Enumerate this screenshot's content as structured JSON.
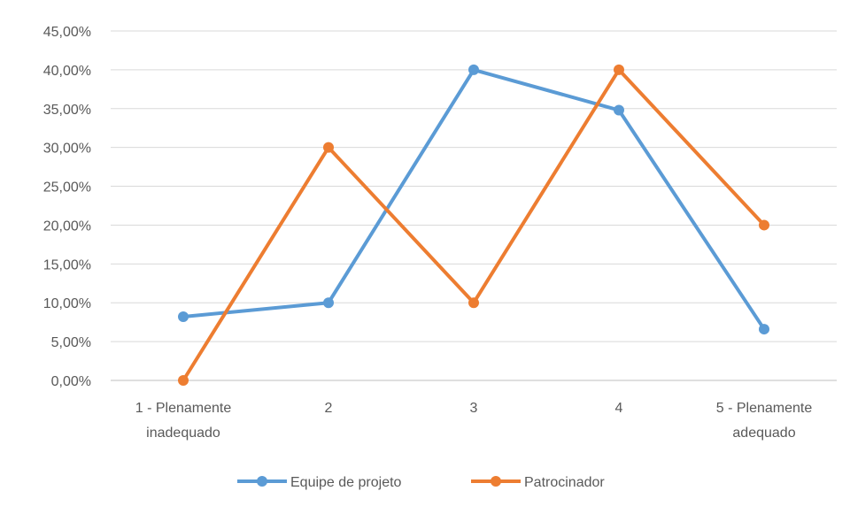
{
  "chart_data": {
    "type": "line",
    "categories": [
      "1 - Plenamente inadequado",
      "2",
      "3",
      "4",
      "5 - Plenamente adequado"
    ],
    "category_lines": [
      [
        "1 - Plenamente",
        "inadequado"
      ],
      [
        "2"
      ],
      [
        "3"
      ],
      [
        "4"
      ],
      [
        "5 - Plenamente",
        "adequado"
      ]
    ],
    "series": [
      {
        "name": "Equipe de projeto",
        "values": [
          8.2,
          10.0,
          40.0,
          34.8,
          6.6
        ],
        "color": "#5B9BD5"
      },
      {
        "name": "Patrocinador",
        "values": [
          0.0,
          30.0,
          10.0,
          40.0,
          20.0
        ],
        "color": "#ED7D31"
      }
    ],
    "ylim": [
      0,
      45
    ],
    "yticks": [
      "0,00%",
      "5,00%",
      "10,00%",
      "15,00%",
      "20,00%",
      "25,00%",
      "30,00%",
      "35,00%",
      "40,00%",
      "45,00%"
    ],
    "grid": true,
    "legend_position": "bottom"
  }
}
